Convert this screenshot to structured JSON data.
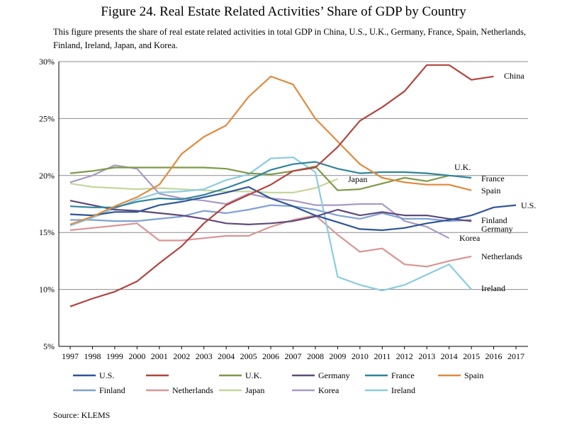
{
  "title": "Figure 24. Real Estate Related Activities’ Share of GDP by Country",
  "description": "This figure presents the share of real estate related activities in total GDP in China, U.S., U.K., Germany, France, Spain, Netherlands, Finland, Ireland, Japan, and Korea.",
  "source": "Source: KLEMS",
  "chart_data": {
    "type": "line",
    "title": "Figure 24. Real Estate Related Activities’ Share of GDP by Country",
    "xlabel": "",
    "ylabel": "",
    "x": [
      1997,
      1998,
      1999,
      2000,
      2001,
      2002,
      2003,
      2004,
      2005,
      2006,
      2007,
      2008,
      2009,
      2010,
      2011,
      2012,
      2013,
      2014,
      2015,
      2016,
      2017
    ],
    "ylim": [
      5,
      30
    ],
    "yticks": [
      "5%",
      "10%",
      "15%",
      "20%",
      "25%",
      "30%"
    ],
    "ytick_values": [
      5,
      10,
      15,
      20,
      25,
      30
    ],
    "grid": true,
    "series": [
      {
        "name": "U.S.",
        "legend_label": "U.S.",
        "inline_label": "U.S.",
        "color": "#2f5597",
        "values": [
          16.6,
          16.5,
          16.8,
          16.8,
          17.4,
          17.7,
          18.1,
          18.5,
          19.0,
          18.0,
          17.3,
          16.5,
          15.9,
          15.3,
          15.2,
          15.4,
          15.8,
          16.1,
          16.5,
          17.2,
          17.4
        ]
      },
      {
        "name": "China",
        "legend_label": "",
        "inline_label": "China",
        "color": "#b2443f",
        "values": [
          8.5,
          9.2,
          9.8,
          10.7,
          12.3,
          13.8,
          15.8,
          17.4,
          18.3,
          19.2,
          20.4,
          20.7,
          22.5,
          24.8,
          26.0,
          27.4,
          29.7,
          29.7,
          28.4,
          28.7,
          null
        ]
      },
      {
        "name": "U.K.",
        "legend_label": "U.K.",
        "inline_label": "U.K.",
        "color": "#7f9a48",
        "values": [
          20.2,
          20.4,
          20.7,
          20.7,
          20.7,
          20.7,
          20.7,
          20.6,
          20.2,
          20.1,
          20.4,
          20.8,
          18.7,
          18.8,
          19.3,
          19.8,
          19.5,
          20.0,
          null,
          null,
          null
        ]
      },
      {
        "name": "Germany",
        "legend_label": "Germany",
        "inline_label": "Germany",
        "color": "#604a7b",
        "values": [
          17.8,
          17.4,
          17.0,
          16.9,
          16.7,
          16.5,
          16.2,
          15.8,
          15.7,
          15.8,
          16.0,
          16.4,
          17.0,
          16.5,
          16.8,
          16.5,
          16.5,
          16.2,
          16.0,
          null,
          null
        ]
      },
      {
        "name": "France",
        "legend_label": "France",
        "inline_label": "France",
        "color": "#31849b",
        "values": [
          17.3,
          17.2,
          17.2,
          17.7,
          18.0,
          17.9,
          18.3,
          18.9,
          19.6,
          20.5,
          21.0,
          21.2,
          20.6,
          20.2,
          20.3,
          20.3,
          20.2,
          20.0,
          19.8,
          null,
          null
        ]
      },
      {
        "name": "Spain",
        "legend_label": "Spain",
        "inline_label": "Spain",
        "color": "#e08b3e",
        "values": [
          15.7,
          16.4,
          17.3,
          18.1,
          19.2,
          21.9,
          23.4,
          24.4,
          26.9,
          28.7,
          28.0,
          25.0,
          23.0,
          21.0,
          19.8,
          19.4,
          19.2,
          19.2,
          18.7,
          null,
          null
        ]
      },
      {
        "name": "Finland",
        "legend_label": "Finland",
        "inline_label": "Finland",
        "color": "#7fa1d4",
        "values": [
          16.1,
          16.1,
          16.0,
          16.0,
          16.2,
          16.4,
          16.9,
          16.7,
          17.0,
          17.4,
          17.3,
          17.0,
          16.5,
          16.2,
          16.7,
          16.2,
          16.2,
          16.0,
          16.1,
          null,
          null
        ]
      },
      {
        "name": "Netherlands",
        "legend_label": "Netherlands",
        "inline_label": "Netherlands",
        "color": "#d99594",
        "values": [
          15.2,
          15.4,
          15.6,
          15.8,
          14.3,
          14.3,
          14.5,
          14.7,
          14.7,
          15.5,
          16.1,
          16.5,
          14.8,
          13.3,
          13.6,
          12.2,
          12.0,
          12.5,
          12.9,
          null,
          null
        ]
      },
      {
        "name": "Japan",
        "legend_label": "Japan",
        "inline_label": "Japan",
        "color": "#c4d79b",
        "values": [
          19.3,
          19.0,
          18.9,
          18.8,
          18.9,
          18.8,
          18.7,
          18.6,
          18.6,
          18.5,
          18.5,
          18.9,
          19.7,
          null,
          null,
          null,
          null,
          null,
          null,
          null,
          null
        ]
      },
      {
        "name": "Korea",
        "legend_label": "Korea",
        "inline_label": "Korea",
        "color": "#a899c4",
        "values": [
          19.4,
          20.0,
          20.9,
          20.6,
          18.4,
          18.0,
          17.8,
          17.5,
          18.4,
          18.0,
          17.8,
          17.4,
          17.4,
          17.5,
          17.5,
          16.0,
          15.5,
          14.5,
          null,
          null,
          null
        ]
      },
      {
        "name": "Ireland",
        "legend_label": "Ireland",
        "inline_label": "Ireland",
        "color": "#8ccbe0",
        "values": [
          15.6,
          16.3,
          17.1,
          17.9,
          18.5,
          18.6,
          18.8,
          19.6,
          20.1,
          21.5,
          21.6,
          20.3,
          11.1,
          10.4,
          9.9,
          10.4,
          11.3,
          12.2,
          10.0,
          null,
          null
        ]
      }
    ]
  }
}
